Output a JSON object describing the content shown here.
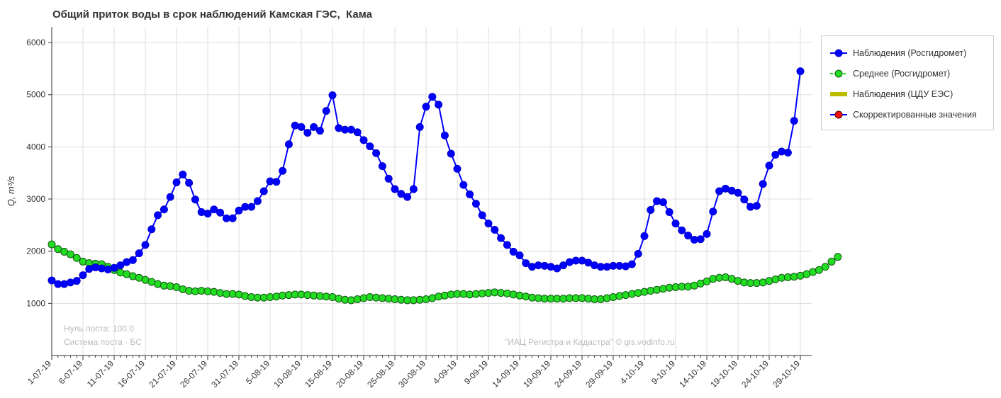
{
  "chart_data": {
    "type": "line",
    "title": "Общий приток воды в срок наблюдений Камская ГЭС,  Кама",
    "xlabel": "",
    "ylabel": "Q, m³/s",
    "ylim": [
      0,
      6300
    ],
    "y_ticks": [
      1000,
      2000,
      3000,
      4000,
      5000,
      6000
    ],
    "x_start": "2019-07-01",
    "x_tick_labels": [
      "1-07-19",
      "6-07-19",
      "11-07-19",
      "16-07-19",
      "21-07-19",
      "26-07-19",
      "31-07-19",
      "5-08-19",
      "10-08-19",
      "15-08-19",
      "20-08-19",
      "25-08-19",
      "30-08-19",
      "4-09-19",
      "9-09-19",
      "14-09-19",
      "19-09-19",
      "24-09-19",
      "29-09-19",
      "4-10-19",
      "9-10-19",
      "14-10-19",
      "19-10-19",
      "24-10-19",
      "29-10-19"
    ],
    "grid": true,
    "legend_position": "right",
    "series": [
      {
        "name": "Наблюдения (Росгидромет)",
        "color": "#0000ff",
        "values": [
          1440,
          1370,
          1370,
          1400,
          1430,
          1540,
          1660,
          1690,
          1670,
          1650,
          1680,
          1730,
          1790,
          1830,
          1960,
          2120,
          2420,
          2690,
          2800,
          3040,
          3320,
          3470,
          3310,
          2990,
          2750,
          2720,
          2800,
          2740,
          2630,
          2630,
          2780,
          2850,
          2850,
          2960,
          3150,
          3340,
          3330,
          3540,
          4050,
          4410,
          4380,
          4270,
          4380,
          4310,
          4690,
          4990,
          4360,
          4330,
          4330,
          4280,
          4130,
          4010,
          3880,
          3630,
          3390,
          3190,
          3100,
          3040,
          3190,
          4380,
          4770,
          4960,
          4810,
          4220,
          3870,
          3580,
          3270,
          3090,
          2910,
          2690,
          2530,
          2410,
          2250,
          2120,
          1990,
          1920,
          1770,
          1700,
          1730,
          1720,
          1700,
          1670,
          1730,
          1790,
          1820,
          1820,
          1780,
          1730,
          1700,
          1700,
          1720,
          1720,
          1710,
          1750,
          1950,
          2290,
          2790,
          2960,
          2940,
          2750,
          2530,
          2400,
          2300,
          2220,
          2230,
          2330,
          2760,
          3150,
          3200,
          3160,
          3120,
          2990,
          2850,
          2870,
          3290,
          3640,
          3850,
          3910,
          3890,
          4500,
          5450
        ]
      },
      {
        "name": "Среднее (Росгидромет)",
        "color": "#22dd22",
        "values": [
          2130,
          2040,
          1990,
          1940,
          1870,
          1800,
          1770,
          1760,
          1750,
          1700,
          1640,
          1590,
          1560,
          1520,
          1490,
          1450,
          1410,
          1370,
          1340,
          1330,
          1310,
          1270,
          1240,
          1230,
          1240,
          1230,
          1220,
          1200,
          1180,
          1180,
          1170,
          1140,
          1120,
          1110,
          1110,
          1120,
          1130,
          1150,
          1160,
          1170,
          1170,
          1160,
          1150,
          1140,
          1130,
          1120,
          1090,
          1070,
          1060,
          1080,
          1100,
          1120,
          1110,
          1100,
          1090,
          1080,
          1070,
          1060,
          1060,
          1070,
          1080,
          1100,
          1130,
          1150,
          1170,
          1180,
          1180,
          1170,
          1180,
          1190,
          1200,
          1210,
          1200,
          1190,
          1170,
          1150,
          1130,
          1110,
          1100,
          1090,
          1090,
          1090,
          1090,
          1100,
          1100,
          1100,
          1090,
          1080,
          1080,
          1100,
          1120,
          1140,
          1160,
          1180,
          1200,
          1220,
          1240,
          1260,
          1280,
          1300,
          1310,
          1320,
          1320,
          1340,
          1380,
          1420,
          1470,
          1490,
          1500,
          1470,
          1430,
          1400,
          1390,
          1390,
          1400,
          1430,
          1460,
          1490,
          1500,
          1510,
          1530,
          1560,
          1600,
          1640,
          1700,
          1800,
          1890
        ]
      },
      {
        "name": "Наблюдения (ЦДУ ЕЭС)",
        "color": "#bbbb00",
        "values": []
      },
      {
        "name": "Скорректированные значения",
        "color": "#0000ff",
        "marker_color": "#ee1111",
        "values": []
      }
    ],
    "annotations": {
      "zero_post": "Нуль поста: 100.0",
      "system_post": "Система поста - БС",
      "credit": "\"ИАЦ Регистра и Кадастра\" © gis.vodinfo.ru"
    }
  }
}
